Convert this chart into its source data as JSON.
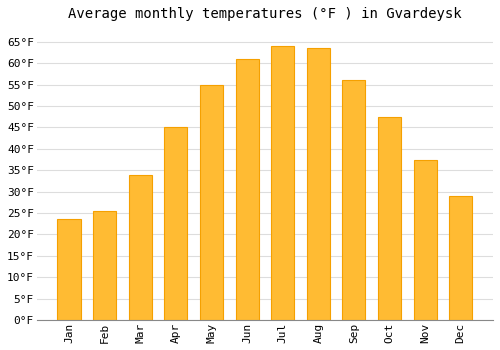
{
  "title": "Average monthly temperatures (°F ) in Gvardeysk",
  "months": [
    "Jan",
    "Feb",
    "Mar",
    "Apr",
    "May",
    "Jun",
    "Jul",
    "Aug",
    "Sep",
    "Oct",
    "Nov",
    "Dec"
  ],
  "values": [
    23.5,
    25.5,
    34.0,
    45.0,
    55.0,
    61.0,
    64.0,
    63.5,
    56.0,
    47.5,
    37.5,
    29.0
  ],
  "bar_color": "#FFBB33",
  "bar_color_bottom": "#F5A000",
  "background_color": "#FFFFFF",
  "grid_color": "#DDDDDD",
  "ylim": [
    0,
    68
  ],
  "yticks": [
    0,
    5,
    10,
    15,
    20,
    25,
    30,
    35,
    40,
    45,
    50,
    55,
    60,
    65
  ],
  "title_fontsize": 10,
  "tick_fontsize": 8,
  "font_family": "monospace"
}
